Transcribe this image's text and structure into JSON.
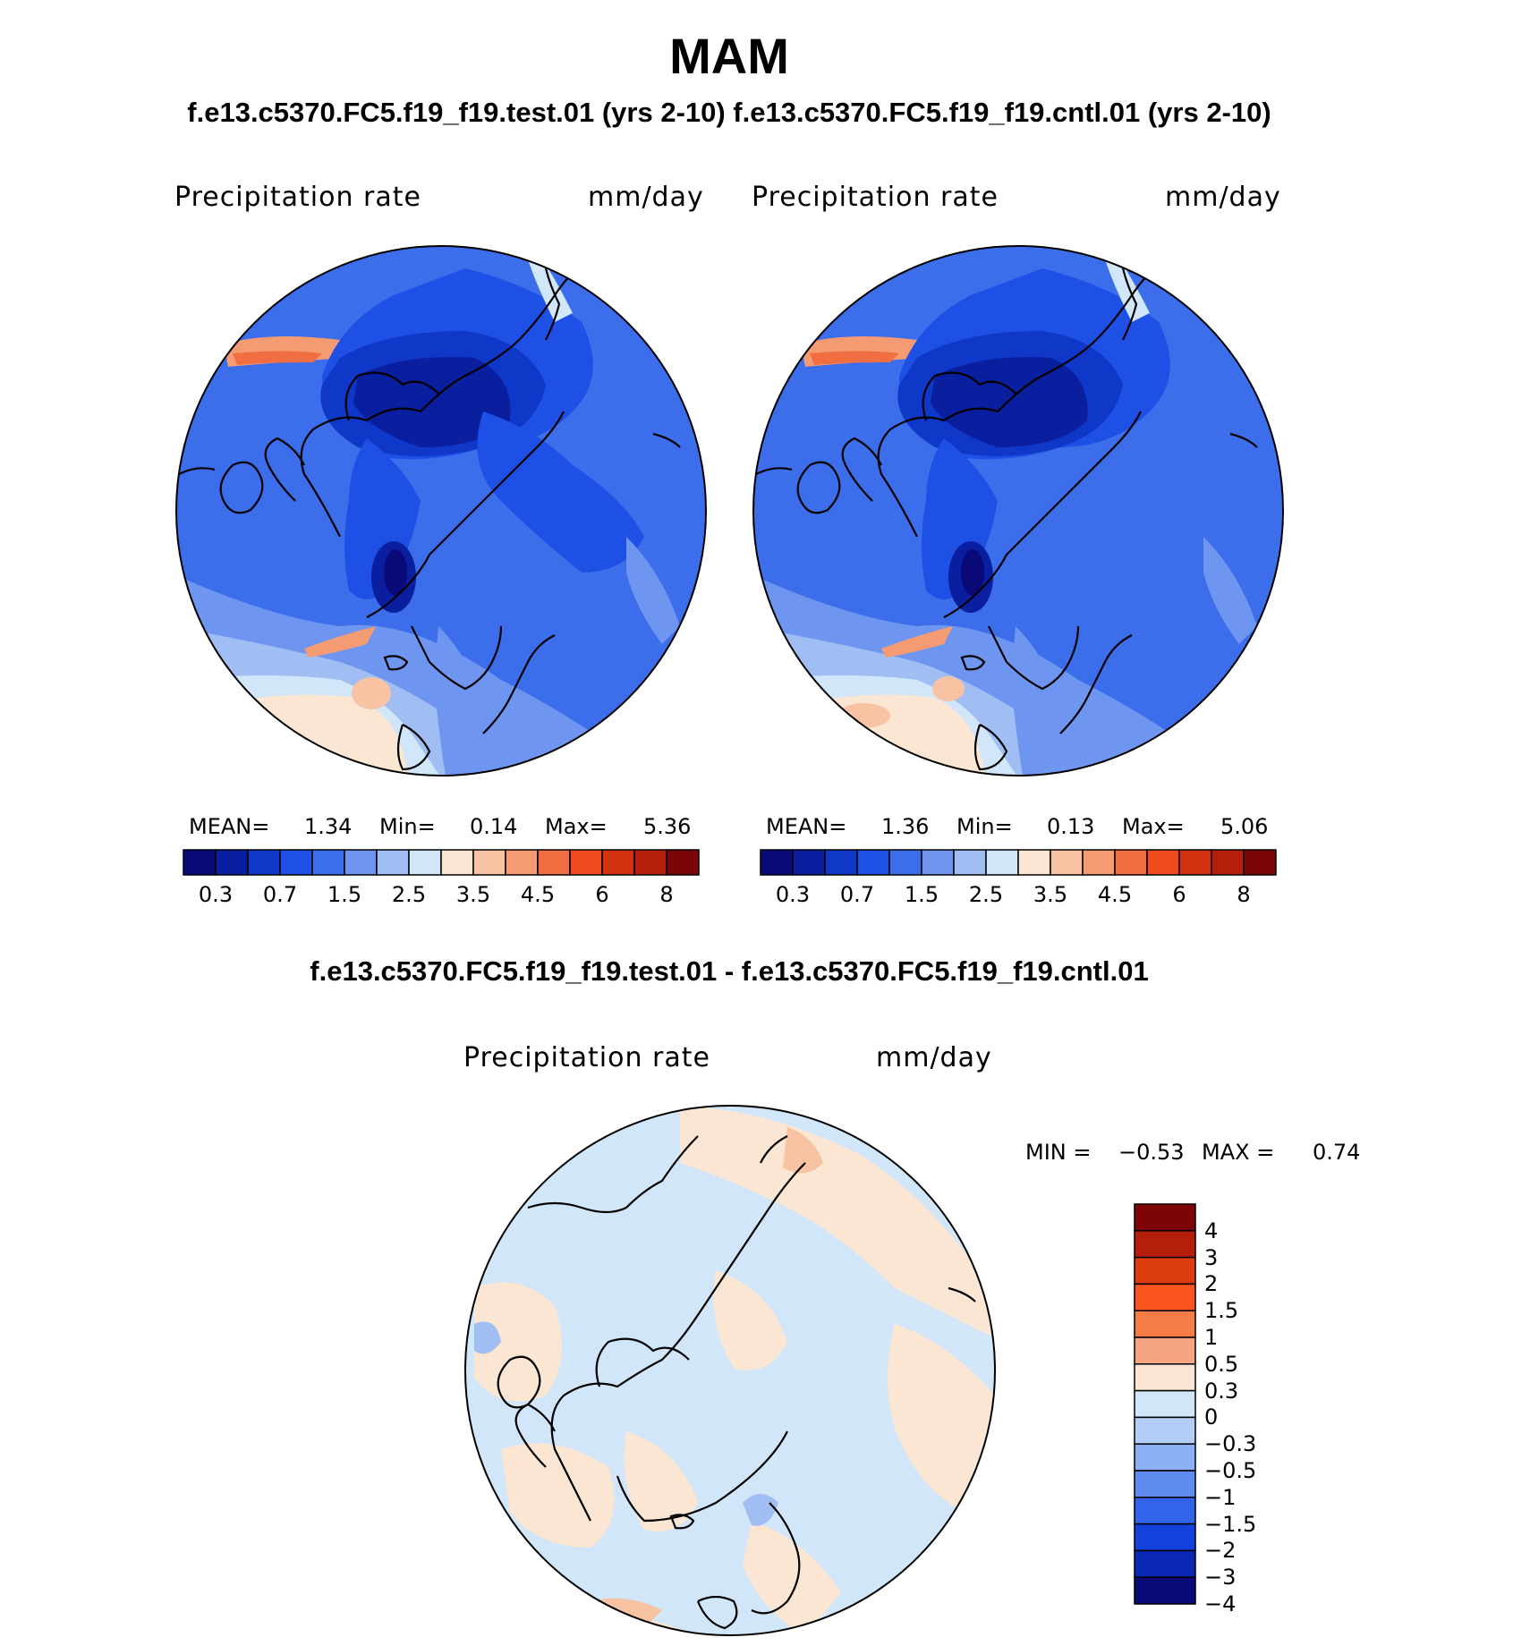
{
  "figure": {
    "title": "MAM",
    "subtitle": "f.e13.c5370.FC5.f19_f19.test.01 (yrs 2-10) f.e13.c5370.FC5.f19_f19.cntl.01 (yrs 2-10)",
    "diff_title": "f.e13.c5370.FC5.f19_f19.test.01 - f.e13.c5370.FC5.f19_f19.cntl.01"
  },
  "panels": [
    {
      "variable": "Precipitation rate",
      "units": "mm/day",
      "stats": {
        "mean_label": "MEAN=",
        "mean": "1.34",
        "min_label": "Min=",
        "min": "0.14",
        "max_label": "Max=",
        "max": "5.36"
      }
    },
    {
      "variable": "Precipitation rate",
      "units": "mm/day",
      "stats": {
        "mean_label": "MEAN=",
        "mean": "1.36",
        "min_label": "Min=",
        "min": "0.13",
        "max_label": "Max=",
        "max": "5.06"
      }
    }
  ],
  "diff_panel": {
    "variable": "Precipitation rate",
    "units": "mm/day",
    "min_label": "MIN =",
    "min": "−0.53",
    "max_label": "MAX =",
    "max": "0.74"
  },
  "colorbar": {
    "colors": [
      "#0a0a78",
      "#0a1ea0",
      "#0f37c8",
      "#1e50e6",
      "#3c6eec",
      "#6e96f0",
      "#a0bef4",
      "#d2e6fa",
      "#fae6d2",
      "#f7c3a3",
      "#f49b73",
      "#f06e41",
      "#f04b1e",
      "#d2320f",
      "#b41e0a",
      "#7d0505"
    ],
    "tick_labels": [
      "0.3",
      "0.7",
      "1.5",
      "2.5",
      "3.5",
      "4.5",
      "6",
      "8"
    ]
  },
  "diff_colorbar": {
    "colors_top_to_bottom": [
      "#7d0505",
      "#b41e0a",
      "#dc3c0f",
      "#fa551e",
      "#f77d46",
      "#f5a582",
      "#fae6d2",
      "#d2e6fa",
      "#b4cdf7",
      "#8cb0f5",
      "#5f8cf0",
      "#3264eb",
      "#1441dc",
      "#0a28b4",
      "#0a0a78"
    ],
    "tick_labels": [
      "4",
      "3",
      "2",
      "1.5",
      "1",
      "0.5",
      "0.3",
      "0",
      "−0.3",
      "−0.5",
      "−1",
      "−1.5",
      "−2",
      "−3",
      "−4"
    ]
  },
  "chart_data": {
    "type": "heatmap",
    "title": "MAM",
    "projection": "North Polar Stereographic",
    "field": "Precipitation rate",
    "units": "mm/day",
    "maps": [
      {
        "name": "f.e13.c5370.FC5.f19_f19.test.01 (yrs 2-10)",
        "mean": 1.34,
        "min": 0.14,
        "max": 5.36,
        "contour_levels": [
          0.2,
          0.3,
          0.5,
          0.7,
          1,
          1.5,
          2,
          2.5,
          3,
          3.5,
          4,
          4.5,
          5,
          6,
          7,
          8
        ]
      },
      {
        "name": "f.e13.c5370.FC5.f19_f19.cntl.01 (yrs 2-10)",
        "mean": 1.36,
        "min": 0.13,
        "max": 5.06,
        "contour_levels": [
          0.2,
          0.3,
          0.5,
          0.7,
          1,
          1.5,
          2,
          2.5,
          3,
          3.5,
          4,
          4.5,
          5,
          6,
          7,
          8
        ]
      },
      {
        "name": "f.e13.c5370.FC5.f19_f19.test.01 - f.e13.c5370.FC5.f19_f19.cntl.01",
        "min": -0.53,
        "max": 0.74,
        "contour_levels": [
          -4,
          -3,
          -2,
          -1.5,
          -1,
          -0.5,
          -0.3,
          0,
          0.3,
          0.5,
          1,
          1.5,
          2,
          3,
          4
        ]
      }
    ]
  }
}
